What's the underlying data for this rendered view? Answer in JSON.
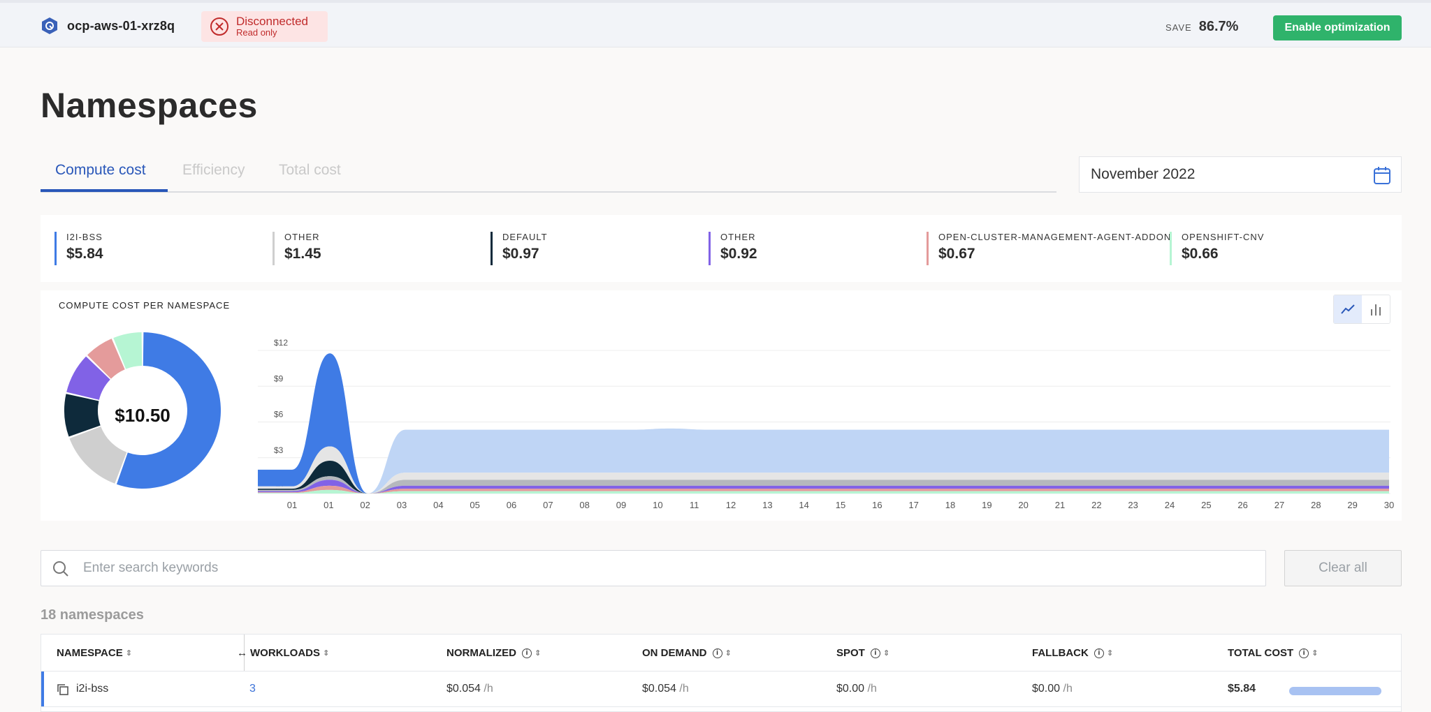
{
  "header": {
    "cluster_name": "ocp-aws-01-xrz8q",
    "status_title": "Disconnected",
    "status_subtitle": "Read only",
    "save_label": "SAVE",
    "save_value": "86.7%",
    "enable_button": "Enable optimization"
  },
  "page": {
    "title": "Namespaces"
  },
  "tabs": [
    {
      "label": "Compute cost",
      "active": true
    },
    {
      "label": "Efficiency",
      "active": false
    },
    {
      "label": "Total cost",
      "active": false
    }
  ],
  "date_picker": {
    "value": "November 2022"
  },
  "summary": [
    {
      "name": "I2I-BSS",
      "value": "$5.84",
      "color": "#3f7be5"
    },
    {
      "name": "OTHER",
      "value": "$1.45",
      "color": "#cfcfcf"
    },
    {
      "name": "DEFAULT",
      "value": "$0.97",
      "color": "#0e2a3b"
    },
    {
      "name": "OTHER",
      "value": "$0.92",
      "color": "#8162e6"
    },
    {
      "name": "OPEN-CLUSTER-MANAGEMENT-AGENT-ADDON",
      "value": "$0.67",
      "color": "#e49b9b"
    },
    {
      "name": "OPENSHIFT-CNV",
      "value": "$0.66",
      "color": "#b6f5d3"
    }
  ],
  "chart_card": {
    "title": "COMPUTE COST PER NAMESPACE",
    "donut_total": "$10.50",
    "view_toggle": [
      "line-chart-icon",
      "bar-chart-icon"
    ]
  },
  "chart_data": [
    {
      "type": "pie",
      "title": "COMPUTE COST PER NAMESPACE",
      "center_label": "$10.50",
      "categories": [
        "I2I-BSS",
        "OTHER",
        "DEFAULT",
        "OTHER",
        "OPEN-CLUSTER-MANAGEMENT-AGENT-ADDON",
        "OPENSHIFT-CNV"
      ],
      "values": [
        5.84,
        1.45,
        0.97,
        0.92,
        0.67,
        0.66
      ],
      "colors": [
        "#3f7be5",
        "#cfcfcf",
        "#0e2a3b",
        "#8162e6",
        "#e49b9b",
        "#b6f5d3"
      ]
    },
    {
      "type": "area",
      "x": [
        "01",
        "01",
        "02",
        "03",
        "04",
        "05",
        "06",
        "07",
        "08",
        "09",
        "10",
        "11",
        "12",
        "13",
        "14",
        "15",
        "16",
        "17",
        "18",
        "19",
        "20",
        "21",
        "22",
        "23",
        "24",
        "25",
        "26",
        "27",
        "28",
        "29",
        "30"
      ],
      "ylim": [
        0,
        12
      ],
      "yticks": [
        "$0",
        "$3",
        "$6",
        "$9",
        "$12"
      ],
      "grid": true,
      "series": [
        {
          "color": "#3f7be5",
          "values": [
            1.4,
            1.4,
            7.8,
            0,
            0,
            0,
            0,
            0,
            0,
            0,
            0,
            0,
            0,
            0,
            0,
            0,
            0,
            0,
            0,
            0,
            0,
            0,
            0,
            0,
            0,
            0,
            0,
            0,
            0,
            0,
            0
          ]
        },
        {
          "color": "#bfd5f5",
          "values": [
            0,
            0,
            0,
            0,
            3.6,
            3.6,
            3.6,
            3.6,
            3.6,
            3.6,
            3.6,
            3.7,
            3.6,
            3.6,
            3.6,
            3.6,
            3.6,
            3.6,
            3.6,
            3.6,
            3.6,
            3.6,
            3.6,
            3.6,
            3.6,
            3.6,
            3.6,
            3.6,
            3.6,
            3.6,
            3.6
          ]
        },
        {
          "color": "#e5e5e5",
          "values": [
            0.2,
            0.2,
            1.2,
            0,
            0.6,
            0.6,
            0.6,
            0.6,
            0.6,
            0.6,
            0.6,
            0.6,
            0.6,
            0.6,
            0.6,
            0.6,
            0.6,
            0.6,
            0.6,
            0.6,
            0.6,
            0.6,
            0.6,
            0.6,
            0.6,
            0.6,
            0.6,
            0.6,
            0.6,
            0.6,
            0.6
          ]
        },
        {
          "color": "#0e2a3b",
          "values": [
            0.1,
            0.1,
            1.3,
            0,
            0,
            0,
            0,
            0,
            0,
            0,
            0,
            0,
            0,
            0,
            0,
            0,
            0,
            0,
            0,
            0,
            0,
            0,
            0,
            0,
            0,
            0,
            0,
            0,
            0,
            0,
            0
          ]
        },
        {
          "color": "#b5b8bd",
          "values": [
            0.1,
            0.1,
            0.3,
            0,
            0.5,
            0.5,
            0.5,
            0.5,
            0.5,
            0.5,
            0.5,
            0.5,
            0.5,
            0.5,
            0.5,
            0.5,
            0.5,
            0.5,
            0.5,
            0.5,
            0.5,
            0.5,
            0.5,
            0.5,
            0.5,
            0.5,
            0.5,
            0.5,
            0.5,
            0.5,
            0.5
          ]
        },
        {
          "color": "#8162e6",
          "values": [
            0.1,
            0.1,
            0.5,
            0,
            0.25,
            0.25,
            0.25,
            0.25,
            0.25,
            0.25,
            0.25,
            0.25,
            0.25,
            0.25,
            0.25,
            0.25,
            0.25,
            0.25,
            0.25,
            0.25,
            0.25,
            0.25,
            0.25,
            0.25,
            0.25,
            0.25,
            0.25,
            0.25,
            0.25,
            0.25,
            0.25
          ]
        },
        {
          "color": "#e49b9b",
          "values": [
            0.05,
            0.05,
            0.35,
            0,
            0.2,
            0.2,
            0.2,
            0.2,
            0.2,
            0.2,
            0.2,
            0.2,
            0.2,
            0.2,
            0.2,
            0.2,
            0.2,
            0.2,
            0.2,
            0.2,
            0.2,
            0.2,
            0.2,
            0.2,
            0.2,
            0.2,
            0.2,
            0.2,
            0.2,
            0.2,
            0.2
          ]
        },
        {
          "color": "#b6f5d3",
          "values": [
            0.05,
            0.05,
            0.3,
            0,
            0.2,
            0.2,
            0.2,
            0.2,
            0.2,
            0.2,
            0.2,
            0.2,
            0.2,
            0.2,
            0.2,
            0.2,
            0.2,
            0.2,
            0.2,
            0.2,
            0.2,
            0.2,
            0.2,
            0.2,
            0.2,
            0.2,
            0.2,
            0.2,
            0.2,
            0.2,
            0.2
          ]
        }
      ]
    }
  ],
  "search": {
    "placeholder": "Enter search keywords"
  },
  "clear_button": "Clear all",
  "namespace_count": "18 namespaces",
  "table": {
    "columns": [
      "NAMESPACE",
      "WORKLOADS",
      "NORMALIZED",
      "ON DEMAND",
      "SPOT",
      "FALLBACK",
      "TOTAL COST"
    ],
    "rows": [
      {
        "namespace": "i2i-bss",
        "workloads": "3",
        "normalized": "$0.054",
        "on_demand": "$0.054",
        "spot": "$0.00",
        "fallback": "$0.00",
        "unit": "/h",
        "total_cost": "$5.84",
        "bar": 1.0
      }
    ]
  }
}
